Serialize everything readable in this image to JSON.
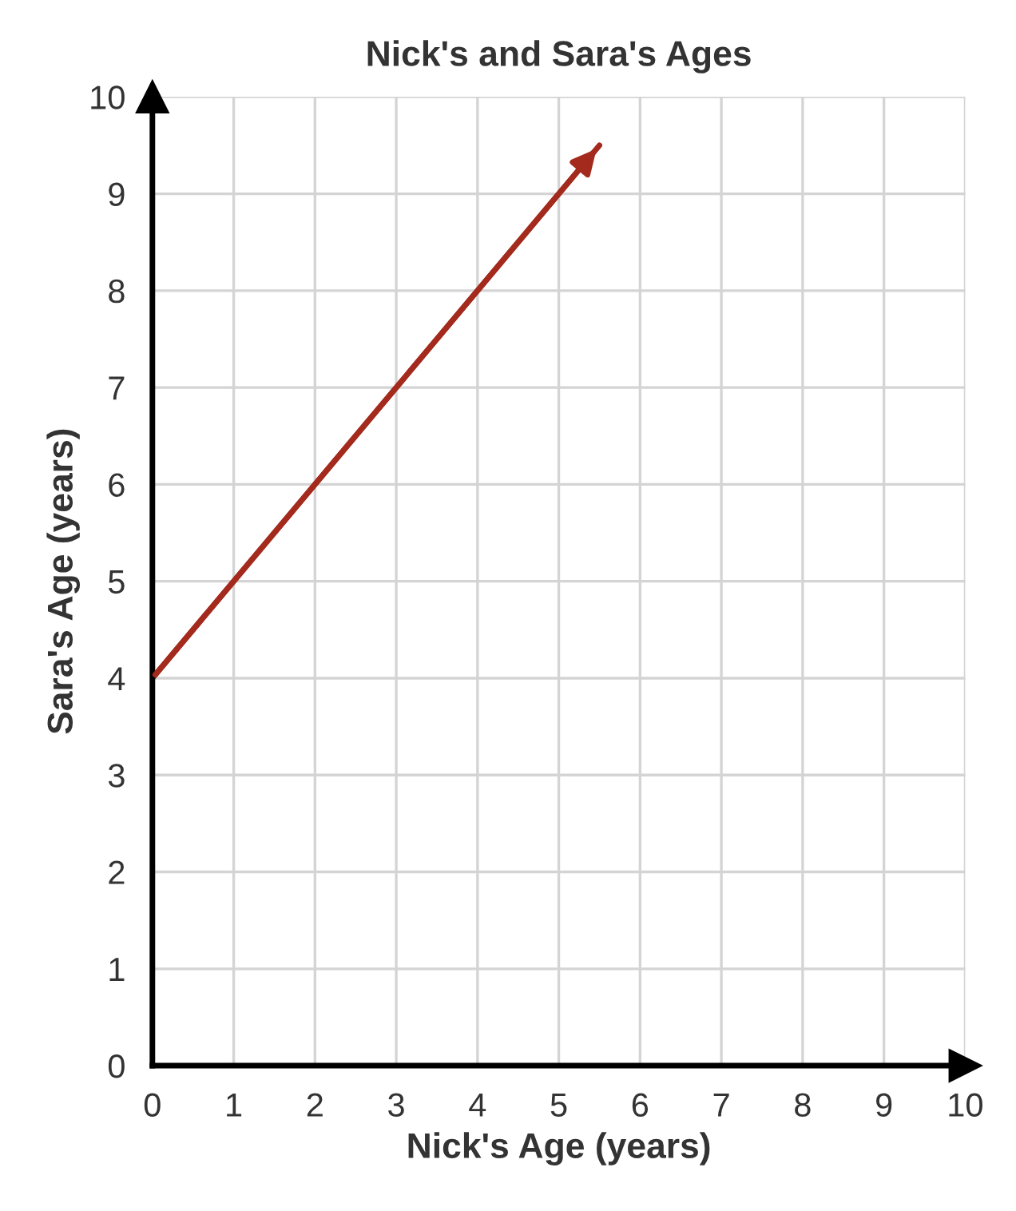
{
  "chart_data": {
    "type": "line",
    "title": "Nick's and Sara's Ages",
    "xlabel": "Nick's Age (years)",
    "ylabel": "Sara's Age (years)",
    "series": [
      {
        "color": "#a32a1c",
        "x": [
          0,
          5.5
        ],
        "values": [
          4,
          9.5
        ]
      }
    ],
    "xlim": [
      0,
      10
    ],
    "ylim": [
      0,
      10
    ],
    "xticks": [
      0,
      1,
      2,
      3,
      4,
      5,
      6,
      7,
      8,
      9,
      10
    ],
    "yticks": [
      0,
      1,
      2,
      3,
      4,
      5,
      6,
      7,
      8,
      9,
      10
    ],
    "grid": true
  }
}
